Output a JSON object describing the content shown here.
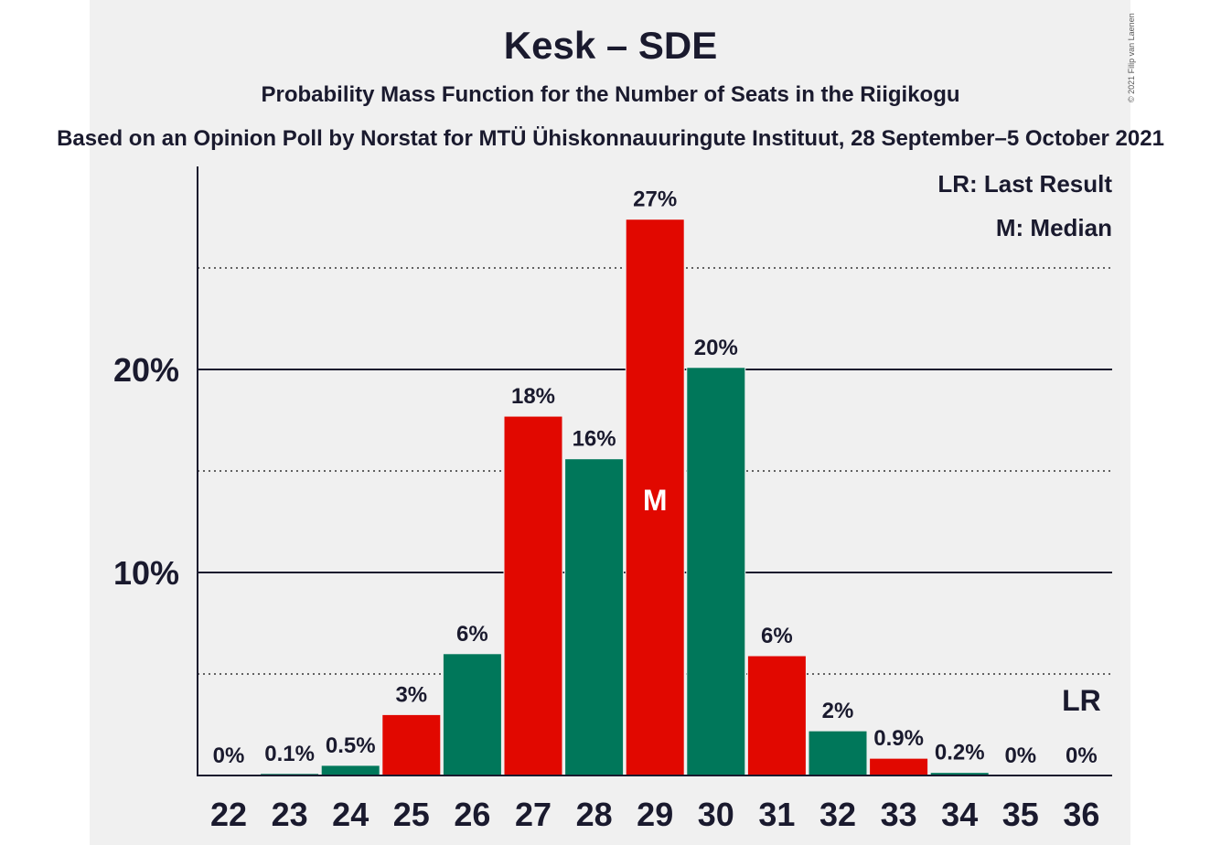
{
  "title": "Kesk – SDE",
  "subtitle": "Probability Mass Function for the Number of Seats in the Riigikogu",
  "source": "Based on an Opinion Poll by Norstat for MTÜ Ühiskonnauuringute Instituut, 28 September–5 October 2021",
  "copyright": "© 2021 Filip van Laenen",
  "legend": {
    "last_result": "LR: Last Result",
    "median": "M: Median"
  },
  "colors": {
    "red": "#e10800",
    "green": "#00775a",
    "background": "#f0f0f0",
    "text": "#1a1a2e"
  },
  "chart_data": {
    "type": "bar",
    "categories": [
      "22",
      "23",
      "24",
      "25",
      "26",
      "27",
      "28",
      "29",
      "30",
      "31",
      "32",
      "33",
      "34",
      "35",
      "36"
    ],
    "values": [
      0,
      0.1,
      0.5,
      3,
      6,
      17.7,
      15.6,
      27.4,
      20.1,
      5.9,
      2.2,
      0.85,
      0.15,
      0,
      0
    ],
    "labels": [
      "0%",
      "0.1%",
      "0.5%",
      "3%",
      "6%",
      "18%",
      "16%",
      "27%",
      "20%",
      "6%",
      "2%",
      "0.9%",
      "0.2%",
      "0%",
      "0%"
    ],
    "bar_colors": [
      "red",
      "green",
      "green",
      "red",
      "green",
      "red",
      "green",
      "red",
      "green",
      "red",
      "green",
      "red",
      "green",
      "red",
      "green"
    ],
    "yticks": [
      {
        "value": 10,
        "label": "10%"
      },
      {
        "value": 20,
        "label": "20%"
      }
    ],
    "minor_gridlines": [
      5,
      15,
      25
    ],
    "ylim": [
      0,
      30
    ],
    "median_category": "29",
    "median_marker": "M",
    "last_result_category": "36",
    "last_result_marker": "LR",
    "legend_position": "top-right"
  }
}
